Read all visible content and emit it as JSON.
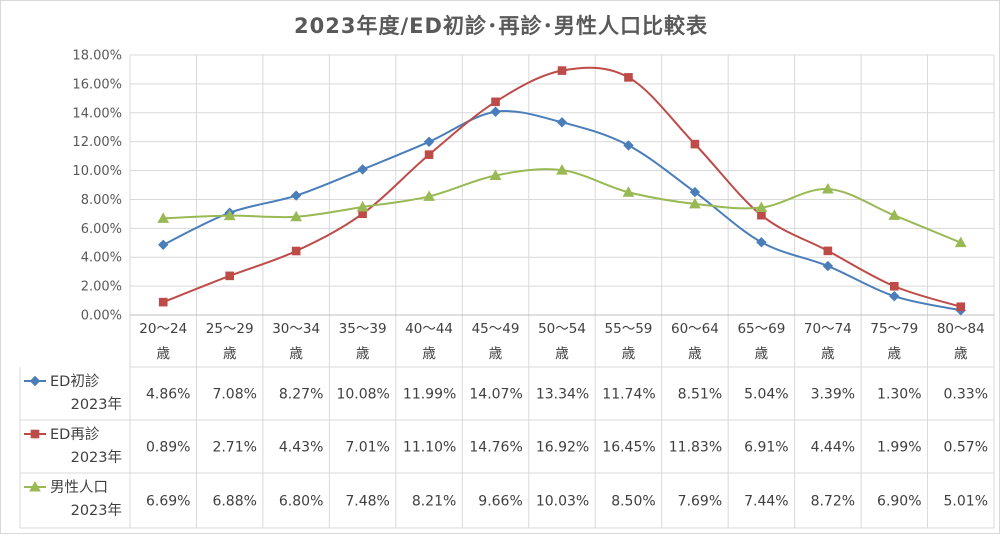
{
  "chart_data": {
    "type": "line",
    "title": "2023年度/ED初診･再診･男性人口比較表",
    "categories": [
      [
        "20～24",
        "歳"
      ],
      [
        "25～29",
        "歳"
      ],
      [
        "30～34",
        "歳"
      ],
      [
        "35～39",
        "歳"
      ],
      [
        "40～44",
        "歳"
      ],
      [
        "45～49",
        "歳"
      ],
      [
        "50～54",
        "歳"
      ],
      [
        "55～59",
        "歳"
      ],
      [
        "60～64",
        "歳"
      ],
      [
        "65～69",
        "歳"
      ],
      [
        "70～74",
        "歳"
      ],
      [
        "75～79",
        "歳"
      ],
      [
        "80～84",
        "歳"
      ]
    ],
    "ylim": [
      0,
      18
    ],
    "yticks": [
      "0.00%",
      "2.00%",
      "4.00%",
      "6.00%",
      "8.00%",
      "10.00%",
      "12.00%",
      "14.00%",
      "16.00%",
      "18.00%"
    ],
    "grid": true,
    "series": [
      {
        "name_lines": [
          "ED初診",
          "2023年"
        ],
        "color": "#4a7ebb",
        "marker": "diamond",
        "values": [
          4.86,
          7.08,
          8.27,
          10.08,
          11.99,
          14.07,
          13.34,
          11.74,
          8.51,
          5.04,
          3.39,
          1.3,
          0.33
        ],
        "labels": [
          "4.86%",
          "7.08%",
          "8.27%",
          "10.08%",
          "11.99%",
          "14.07%",
          "13.34%",
          "11.74%",
          "8.51%",
          "5.04%",
          "3.39%",
          "1.30%",
          "0.33%"
        ]
      },
      {
        "name_lines": [
          "ED再診",
          "2023年"
        ],
        "color": "#be4b48",
        "marker": "square",
        "values": [
          0.89,
          2.71,
          4.43,
          7.01,
          11.1,
          14.76,
          16.92,
          16.45,
          11.83,
          6.91,
          4.44,
          1.99,
          0.57
        ],
        "labels": [
          "0.89%",
          "2.71%",
          "4.43%",
          "7.01%",
          "11.10%",
          "14.76%",
          "16.92%",
          "16.45%",
          "11.83%",
          "6.91%",
          "4.44%",
          "1.99%",
          "0.57%"
        ]
      },
      {
        "name_lines": [
          "男性人口",
          "2023年"
        ],
        "color": "#98b954",
        "marker": "triangle",
        "values": [
          6.69,
          6.88,
          6.8,
          7.48,
          8.21,
          9.66,
          10.03,
          8.5,
          7.69,
          7.44,
          8.72,
          6.9,
          5.01
        ],
        "labels": [
          "6.69%",
          "6.88%",
          "6.80%",
          "7.48%",
          "8.21%",
          "9.66%",
          "10.03%",
          "8.50%",
          "7.69%",
          "7.44%",
          "8.72%",
          "6.90%",
          "5.01%"
        ]
      }
    ]
  }
}
